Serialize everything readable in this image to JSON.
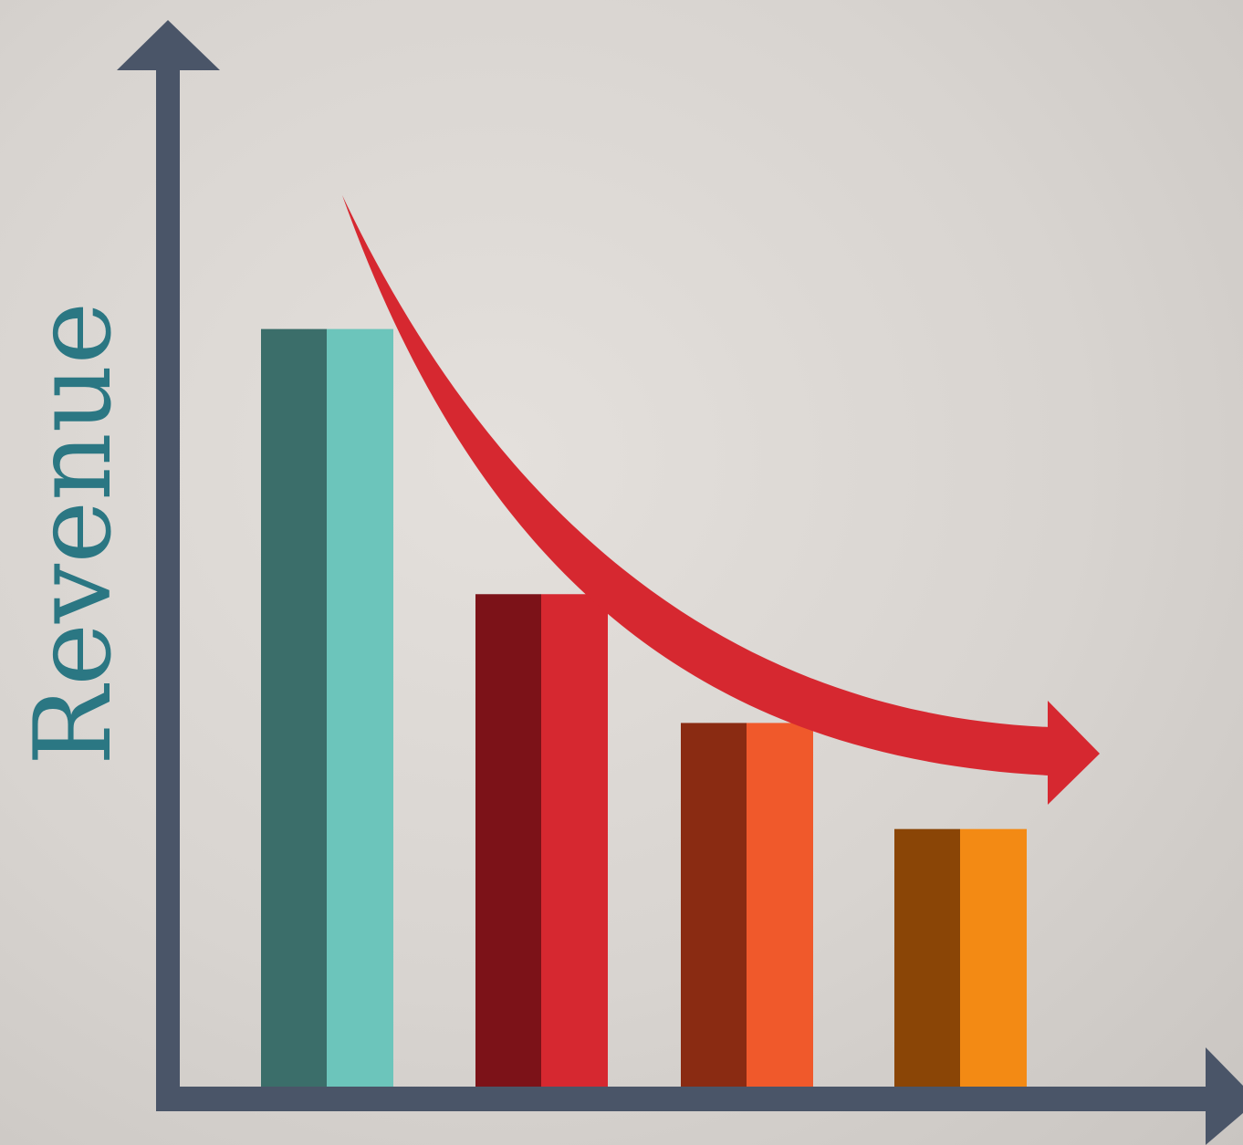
{
  "chart_data": {
    "type": "bar",
    "title": "",
    "xlabel": "",
    "ylabel": "Revenue",
    "categories": [
      "",
      "",
      "",
      ""
    ],
    "values": [
      100,
      65,
      48,
      34
    ],
    "ylim": [
      0,
      135
    ],
    "grid": false,
    "legend": "none",
    "trend_arrow": {
      "direction": "decreasing",
      "color": "#d62830"
    },
    "bar_colors": [
      {
        "dark": "#3b6e6a",
        "light": "#6cc5bb"
      },
      {
        "dark": "#7c1218",
        "light": "#d62830"
      },
      {
        "dark": "#8a2b12",
        "light": "#f0592b"
      },
      {
        "dark": "#8a4506",
        "light": "#f38a14"
      }
    ],
    "axis_color": "#4a5568",
    "ylabel_color": "#2b7783"
  }
}
